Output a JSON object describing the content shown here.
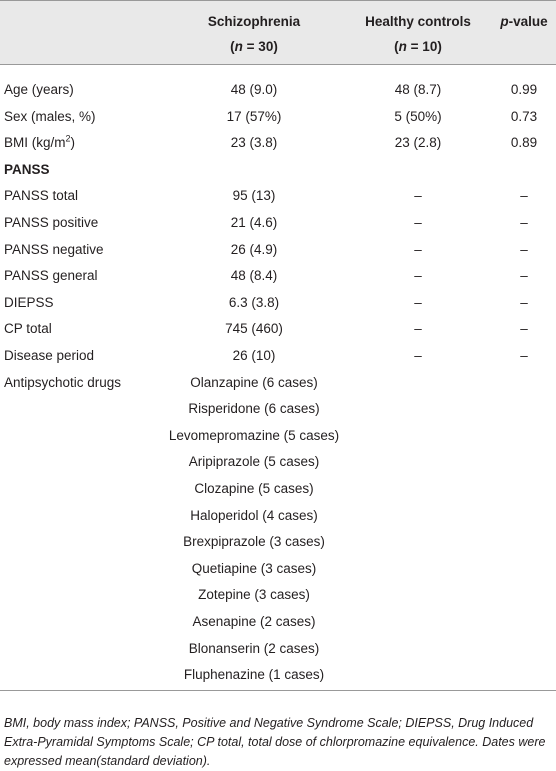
{
  "table": {
    "header": [
      {
        "title": "Schizophrenia",
        "subtitle": [
          {
            "text": "("
          },
          {
            "text": "n",
            "style": "i"
          },
          {
            "text": " = 30)"
          }
        ]
      },
      {
        "title": "Healthy controls",
        "subtitle": [
          {
            "text": "("
          },
          {
            "text": "n",
            "style": "i"
          },
          {
            "text": " = 10)"
          }
        ]
      },
      {
        "title": [
          {
            "text": "p",
            "style": "i"
          },
          {
            "text": "-value"
          }
        ]
      }
    ],
    "rows": [
      [
        "Age (years)",
        "48 (9.0)",
        "48 (8.7)",
        "0.99"
      ],
      [
        "Sex (males, %)",
        "17 (57%)",
        "5 (50%)",
        "0.73"
      ],
      [
        [
          {
            "text": "BMI (kg/m"
          },
          {
            "text": "2",
            "style": "sup"
          },
          {
            "text": ")"
          }
        ],
        "23 (3.8)",
        "23 (2.8)",
        "0.89"
      ],
      [
        [
          {
            "text": "PANSS",
            "style": "b"
          }
        ]
      ],
      [
        "PANSS total",
        "95 (13)",
        "–",
        "–"
      ],
      [
        "PANSS positive",
        "21 (4.6)",
        "–",
        "–"
      ],
      [
        "PANSS negative",
        "26 (4.9)",
        "–",
        "–"
      ],
      [
        "PANSS general",
        "48 (8.4)",
        "–",
        "–"
      ],
      [
        "DIEPSS",
        "6.3 (3.8)",
        "–",
        "–"
      ],
      [
        "CP total",
        "745 (460)",
        "–",
        "–"
      ],
      [
        "Disease period",
        "26 (10)",
        "–",
        "–"
      ],
      [
        "Antipsychotic drugs",
        "Olanzapine (6 cases)"
      ],
      [
        null,
        "Risperidone (6 cases)"
      ],
      [
        null,
        "Levomepromazine (5 cases)"
      ],
      [
        null,
        "Aripiprazole (5 cases)"
      ],
      [
        null,
        "Clozapine (5 cases)"
      ],
      [
        null,
        "Haloperidol (4 cases)"
      ],
      [
        null,
        "Brexpiprazole (3 cases)"
      ],
      [
        null,
        "Quetiapine (3 cases)"
      ],
      [
        null,
        "Zotepine (3 cases)"
      ],
      [
        null,
        "Asenapine (2 cases)"
      ],
      [
        null,
        "Blonanserin (2 cases)"
      ],
      [
        null,
        "Fluphenazine (1 cases)"
      ]
    ],
    "footnote": "BMI, body mass index; PANSS, Positive and Negative Syndrome Scale; DIEPSS, Drug Induced Extra-Pyramidal Symptoms Scale; CP total, total dose of chlorpromazine equivalence. Dates were expressed mean(standard deviation)."
  }
}
